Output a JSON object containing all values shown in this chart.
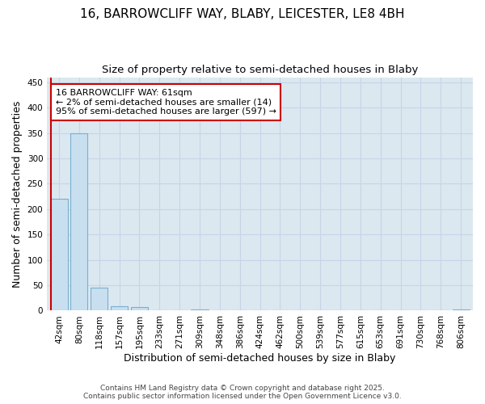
{
  "title_line1": "16, BARROWCLIFF WAY, BLABY, LEICESTER, LE8 4BH",
  "title_line2": "Size of property relative to semi-detached houses in Blaby",
  "xlabel": "Distribution of semi-detached houses by size in Blaby",
  "ylabel": "Number of semi-detached properties",
  "categories": [
    "42sqm",
    "80sqm",
    "118sqm",
    "157sqm",
    "195sqm",
    "233sqm",
    "271sqm",
    "309sqm",
    "348sqm",
    "386sqm",
    "424sqm",
    "462sqm",
    "500sqm",
    "539sqm",
    "577sqm",
    "615sqm",
    "653sqm",
    "691sqm",
    "730sqm",
    "768sqm",
    "806sqm"
  ],
  "values": [
    220,
    350,
    45,
    9,
    7,
    0,
    0,
    3,
    0,
    0,
    0,
    0,
    0,
    0,
    0,
    0,
    0,
    0,
    0,
    0,
    3
  ],
  "bar_color": "#c8dff0",
  "bar_edge_color": "#7aafcf",
  "highlight_line_color": "#cc0000",
  "annotation_line1": "16 BARROWCLIFF WAY: 61sqm",
  "annotation_line2": "← 2% of semi-detached houses are smaller (14)",
  "annotation_line3": "95% of semi-detached houses are larger (597) →",
  "annotation_box_color": "#cc0000",
  "annotation_fill_color": "#ffffff",
  "ylim": [
    0,
    460
  ],
  "yticks": [
    0,
    50,
    100,
    150,
    200,
    250,
    300,
    350,
    400,
    450
  ],
  "grid_color": "#c8d4e8",
  "bg_color": "#dce8f0",
  "plot_bg_color": "#dce8f0",
  "footer_text": "Contains HM Land Registry data © Crown copyright and database right 2025.\nContains public sector information licensed under the Open Government Licence v3.0.",
  "title_fontsize": 11,
  "subtitle_fontsize": 9.5,
  "axis_label_fontsize": 9,
  "tick_fontsize": 7.5,
  "footer_fontsize": 6.5
}
